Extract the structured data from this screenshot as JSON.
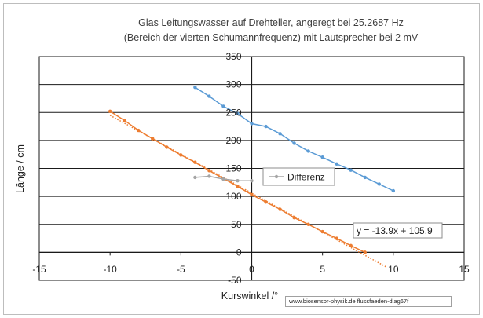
{
  "chart_data": {
    "type": "line",
    "title": "Glas Leitungswasser auf Drehteller, angeregt bei 25.2687 Hz",
    "subtitle": "(Bereich der vierten Schumannfrequenz) mit Lautsprecher bei 2 mV",
    "xlabel": "Kurswinkel /°",
    "ylabel": "Länge / cm",
    "xlim": [
      -15,
      15
    ],
    "ylim": [
      -50,
      350
    ],
    "x_ticks": [
      -15,
      -10,
      -5,
      0,
      5,
      10,
      15
    ],
    "y_ticks": [
      -50,
      0,
      50,
      100,
      150,
      200,
      250,
      300,
      350
    ],
    "grid": "horizontal",
    "series": [
      {
        "color": "#5b9bd5",
        "points": [
          [
            -4,
            295
          ],
          [
            -3,
            279
          ],
          [
            -2,
            261
          ],
          [
            -1,
            248
          ],
          [
            0,
            230
          ],
          [
            1,
            225
          ],
          [
            2,
            212
          ],
          [
            3,
            195
          ],
          [
            4,
            181
          ],
          [
            5,
            170
          ],
          [
            6,
            158
          ],
          [
            7,
            147
          ],
          [
            8,
            134
          ],
          [
            9,
            122
          ],
          [
            10,
            110
          ]
        ]
      },
      {
        "color": "#ed7d31",
        "points": [
          [
            -10,
            252
          ],
          [
            -9,
            236
          ],
          [
            -8,
            218
          ],
          [
            -7,
            203
          ],
          [
            -6,
            188
          ],
          [
            -5,
            174
          ],
          [
            -4,
            161
          ],
          [
            -3,
            146
          ],
          [
            -2,
            132
          ],
          [
            -1,
            118
          ],
          [
            0,
            103
          ],
          [
            1,
            90
          ],
          [
            2,
            77
          ],
          [
            3,
            62
          ],
          [
            4,
            50
          ],
          [
            5,
            37
          ],
          [
            6,
            25
          ],
          [
            7,
            12
          ],
          [
            8,
            0
          ]
        ]
      },
      {
        "name": "Differenz",
        "color": "#a5a5a5",
        "points": [
          [
            -4,
            134
          ],
          [
            -3,
            136
          ],
          [
            -2,
            131
          ],
          [
            -1,
            128
          ],
          [
            0,
            128
          ]
        ]
      }
    ],
    "trendline": {
      "color": "#ed7d31",
      "style": "dotted",
      "slope": -13.9,
      "intercept": 105.9,
      "x_range": [
        -10,
        9.5
      ],
      "label": "y = -13.9x + 105.9"
    },
    "legend": {
      "placement": "inside-center-right",
      "entries": [
        "Differenz"
      ]
    },
    "credit": "www.biosensor-physik.de  flussfaeden-diag67f"
  }
}
